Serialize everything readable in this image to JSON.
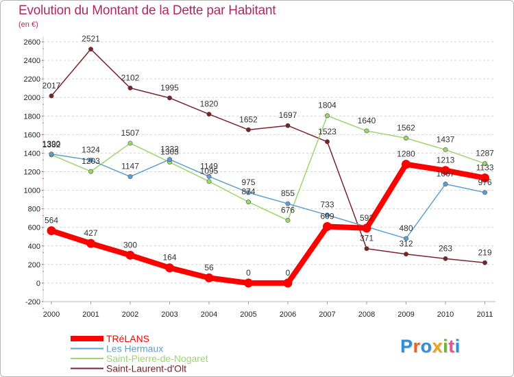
{
  "title": "Evolution du Montant de la Dette par Habitant",
  "unit": "(en €)",
  "logo": {
    "text": "Proxiti",
    "colors": [
      "#2f8fd8",
      "#e8641e",
      "#2f8fd8",
      "#e8a21e",
      "#6cb33f",
      "#e05a8a",
      "#2f8fd8"
    ]
  },
  "chart_data": {
    "type": "line",
    "title": "Evolution du Montant de la Dette par Habitant",
    "ylabel": "(en €)",
    "ylim": [
      -200,
      2600
    ],
    "ytick_step": 200,
    "grid": "horizontal dashed",
    "legend": "bottom-left",
    "x": [
      "2000",
      "2001",
      "2002",
      "2003",
      "2004",
      "2005",
      "2006",
      "2007",
      "2008",
      "2009",
      "2010",
      "2011"
    ],
    "series": [
      {
        "name": "Saint-Laurent-d'Olt",
        "color": "#7a2228",
        "width": 1.5,
        "values": [
          2017,
          2521,
          2102,
          1995,
          1820,
          1652,
          1697,
          1523,
          371,
          312,
          263,
          219
        ],
        "labels": [
          "2017",
          "2521",
          "2102",
          "1995",
          "1820",
          "1652",
          "1697",
          "1523",
          "371",
          "312",
          "263",
          "219"
        ]
      },
      {
        "name": "Saint-Pierre-de-Nogaret",
        "color": "#9ad66a",
        "width": 1.5,
        "values": [
          1382,
          1203,
          1507,
          1303,
          1095,
          874,
          676,
          1804,
          1640,
          1562,
          1437,
          1287
        ],
        "labels": [
          "1382",
          "1203",
          "1507",
          "1303",
          "1095",
          "874",
          "676",
          "1804",
          "1640",
          "1562",
          "1437",
          "1287"
        ]
      },
      {
        "name": "Les Hermaux",
        "color": "#5b9fd2",
        "width": 1.5,
        "values": [
          1390,
          1324,
          1147,
          1332,
          1149,
          975,
          855,
          733,
          null,
          480,
          1067,
          976
        ],
        "labels": [
          "1390",
          "1324",
          "1147",
          "1332",
          "1149",
          "975",
          "855",
          "733",
          "",
          "480",
          "1067",
          "976"
        ]
      },
      {
        "name": "TRéLANS",
        "color": "#ff0000",
        "width": 8,
        "values": [
          564,
          427,
          300,
          164,
          56,
          0,
          0,
          609,
          592,
          1280,
          1213,
          1133
        ],
        "labels": [
          "564",
          "427",
          "300",
          "164",
          "56",
          "0",
          "0",
          "609",
          "592",
          "1280",
          "1213",
          "1133"
        ]
      }
    ],
    "legend_order": [
      "TRéLANS",
      "Les Hermaux",
      "Saint-Pierre-de-Nogaret",
      "Saint-Laurent-d'Olt"
    ]
  }
}
